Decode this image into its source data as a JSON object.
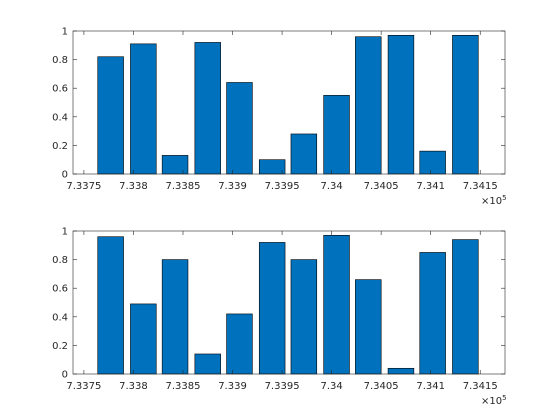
{
  "chart_data": [
    {
      "type": "bar",
      "color": "#0072bd",
      "edgecolor": "#000000",
      "x": [
        733777,
        733810,
        733842,
        733875,
        733907,
        733940,
        733972,
        734005,
        734037,
        734070,
        734102,
        734135
      ],
      "values": [
        0.82,
        0.91,
        0.13,
        0.92,
        0.64,
        0.1,
        0.28,
        0.55,
        0.96,
        0.97,
        0.16,
        0.97
      ],
      "xlim": [
        733739,
        734175
      ],
      "xticks": [
        {
          "value": 733750,
          "label": "7.3375"
        },
        {
          "value": 733800,
          "label": "7.338"
        },
        {
          "value": 733850,
          "label": "7.3385"
        },
        {
          "value": 733900,
          "label": "7.339"
        },
        {
          "value": 733950,
          "label": "7.3395"
        },
        {
          "value": 734000,
          "label": "7.34"
        },
        {
          "value": 734050,
          "label": "7.3405"
        },
        {
          "value": 734100,
          "label": "7.341"
        },
        {
          "value": 734150,
          "label": "7.3415"
        }
      ],
      "x_exponent_base": "×10",
      "x_exponent": "5",
      "ylim": [
        0,
        1
      ],
      "yticks": [
        0,
        0.2,
        0.4,
        0.6,
        0.8,
        1
      ]
    },
    {
      "type": "bar",
      "color": "#0072bd",
      "edgecolor": "#000000",
      "x": [
        733777,
        733810,
        733842,
        733875,
        733907,
        733940,
        733972,
        734005,
        734037,
        734070,
        734102,
        734135
      ],
      "values": [
        0.96,
        0.49,
        0.8,
        0.14,
        0.42,
        0.92,
        0.8,
        0.97,
        0.66,
        0.04,
        0.85,
        0.94
      ],
      "xlim": [
        733739,
        734175
      ],
      "xticks": [
        {
          "value": 733750,
          "label": "7.3375"
        },
        {
          "value": 733800,
          "label": "7.338"
        },
        {
          "value": 733850,
          "label": "7.3385"
        },
        {
          "value": 733900,
          "label": "7.339"
        },
        {
          "value": 733950,
          "label": "7.3395"
        },
        {
          "value": 734000,
          "label": "7.34"
        },
        {
          "value": 734050,
          "label": "7.3405"
        },
        {
          "value": 734100,
          "label": "7.341"
        },
        {
          "value": 734150,
          "label": "7.3415"
        }
      ],
      "x_exponent_base": "×10",
      "x_exponent": "5",
      "ylim": [
        0,
        1
      ],
      "yticks": [
        0,
        0.2,
        0.4,
        0.6,
        0.8,
        1
      ]
    }
  ]
}
